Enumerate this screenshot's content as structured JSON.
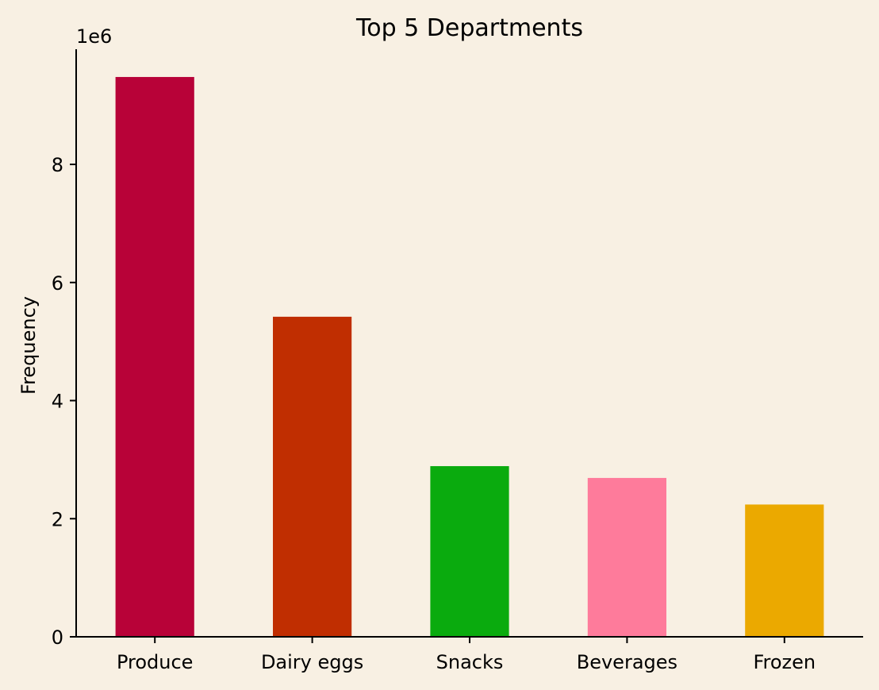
{
  "chart_data": {
    "type": "bar",
    "title": "Top 5 Departments",
    "xlabel": "",
    "ylabel": "Frequency",
    "y_offset_label": "1e6",
    "y_scale": 1000000,
    "categories": [
      "Produce",
      "Dairy eggs",
      "Snacks",
      "Beverages",
      "Frozen"
    ],
    "values": [
      9480000,
      5420000,
      2890000,
      2690000,
      2240000
    ],
    "colors": [
      "#b80238",
      "#c02e01",
      "#0aab0e",
      "#fe7b9b",
      "#eba900"
    ],
    "ylim": [
      0,
      9950000
    ],
    "yticks": [
      0,
      2,
      4,
      6,
      8
    ],
    "background": "#f8f0e3",
    "grid": false,
    "legend": "none"
  }
}
